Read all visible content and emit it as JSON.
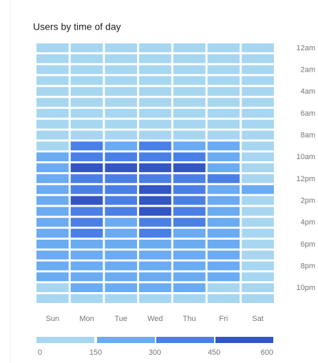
{
  "chart_data": {
    "type": "heatmap",
    "title": "Users by time of day",
    "columns": [
      "Sun",
      "Mon",
      "Tue",
      "Wed",
      "Thu",
      "Fri",
      "Sat"
    ],
    "rows": [
      "12am",
      null,
      "2am",
      null,
      "4am",
      null,
      "6am",
      null,
      "8am",
      null,
      "10am",
      null,
      "12pm",
      null,
      "2pm",
      null,
      "4pm",
      null,
      "6pm",
      null,
      "8pm",
      null,
      "10pm",
      null
    ],
    "values": [
      [
        70,
        60,
        60,
        65,
        60,
        55,
        70
      ],
      [
        60,
        50,
        50,
        55,
        50,
        50,
        60
      ],
      [
        50,
        40,
        40,
        45,
        40,
        40,
        50
      ],
      [
        45,
        35,
        35,
        40,
        35,
        35,
        45
      ],
      [
        40,
        35,
        35,
        35,
        35,
        35,
        40
      ],
      [
        40,
        40,
        40,
        40,
        40,
        40,
        40
      ],
      [
        45,
        60,
        60,
        60,
        60,
        55,
        45
      ],
      [
        60,
        90,
        90,
        95,
        90,
        85,
        60
      ],
      [
        80,
        130,
        120,
        135,
        125,
        120,
        80
      ],
      [
        120,
        360,
        250,
        380,
        260,
        230,
        100
      ],
      [
        200,
        420,
        400,
        430,
        410,
        240,
        110
      ],
      [
        220,
        470,
        480,
        490,
        470,
        280,
        120
      ],
      [
        230,
        410,
        400,
        420,
        400,
        380,
        130
      ],
      [
        290,
        400,
        390,
        480,
        420,
        270,
        160
      ],
      [
        240,
        460,
        420,
        480,
        410,
        260,
        130
      ],
      [
        230,
        400,
        380,
        470,
        390,
        250,
        120
      ],
      [
        220,
        350,
        290,
        380,
        320,
        240,
        120
      ],
      [
        210,
        320,
        280,
        330,
        280,
        230,
        110
      ],
      [
        200,
        270,
        250,
        280,
        250,
        220,
        110
      ],
      [
        190,
        240,
        230,
        250,
        230,
        200,
        100
      ],
      [
        180,
        230,
        220,
        240,
        220,
        180,
        100
      ],
      [
        170,
        220,
        210,
        220,
        200,
        160,
        100
      ],
      [
        140,
        180,
        170,
        180,
        170,
        130,
        90
      ],
      [
        100,
        140,
        130,
        140,
        120,
        110,
        80
      ]
    ],
    "legend_ticks": [
      0,
      150,
      300,
      450,
      600
    ],
    "colors": [
      "#a7d6f1",
      "#6aabf2",
      "#4a7fe6",
      "#3356c6"
    ]
  }
}
